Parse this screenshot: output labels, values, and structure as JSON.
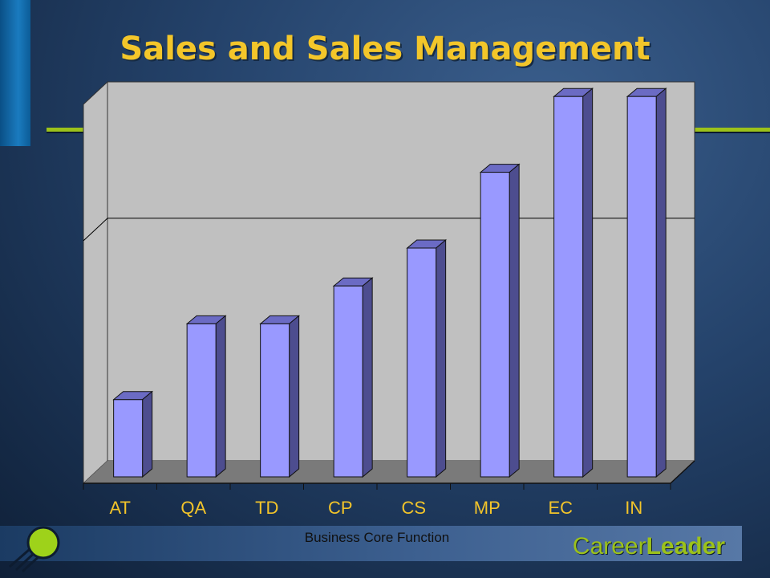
{
  "slide": {
    "title": "Sales and Sales Management"
  },
  "brand": {
    "part1": "Career",
    "part2": "Leader"
  },
  "chart_data": {
    "type": "bar",
    "style": "3d",
    "categories": [
      "AT",
      "QA",
      "TD",
      "CP",
      "CS",
      "MP",
      "EC",
      "IN"
    ],
    "values": [
      1,
      2,
      2,
      2.5,
      3,
      4,
      5,
      5
    ],
    "ylim": [
      0,
      5
    ],
    "gridlines": [
      3.2
    ],
    "grid": true,
    "xlabel": "Business Core Function",
    "ylabel": "",
    "title": "Sales and Sales Management",
    "colors": {
      "bar_front": "#9999ff",
      "bar_side": "#4d4d8f",
      "bar_top": "#6b6bc4",
      "wall": "#c0c0c0",
      "floor": "#7a7a7a",
      "tick_label": "#f2c42a",
      "title": "#f3c62a",
      "accent_green": "#9cc21a"
    }
  }
}
